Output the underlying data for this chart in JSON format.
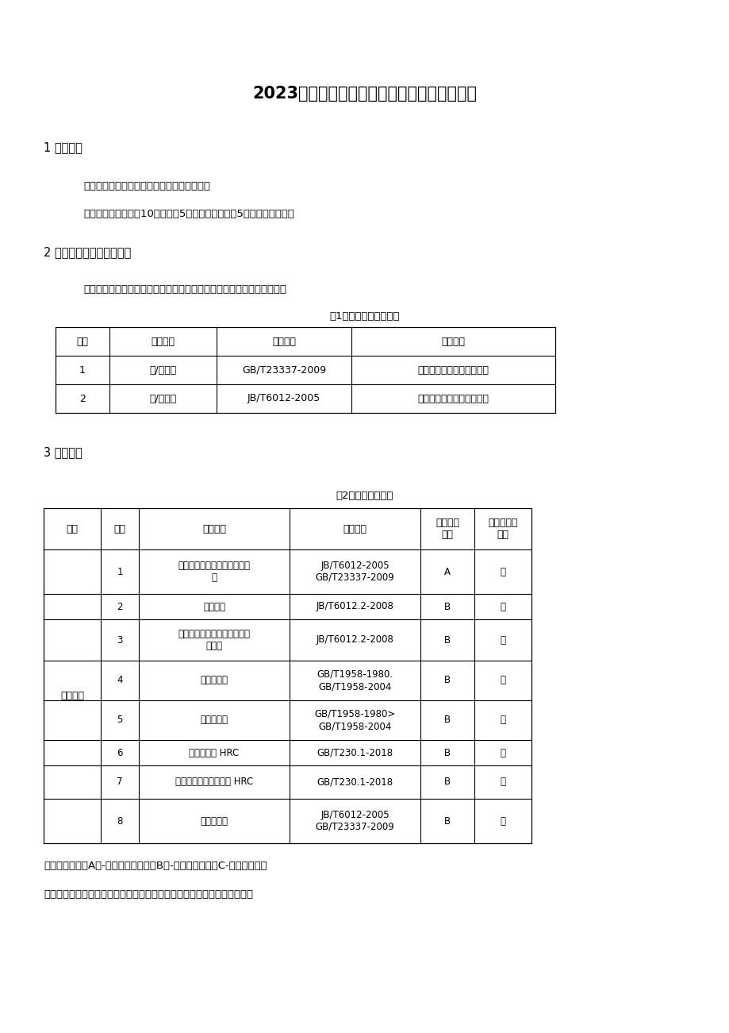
{
  "title": "2023年河北省气门产品质量监督抽查实施细则",
  "section1_title": "1 抽样方法",
  "section1_para1": "以随机抽样的方式抽取检验样品和备用样品。",
  "section1_para2": "每批次产品抽取样品10个，其中5个作为检验样品，5个作为备用样品。",
  "section2_title": "2 抽查产品名称及执行标准",
  "section2_para1": "本次抽查的产品名称主要为：进气门、排气门，各产品执行标准见下表。",
  "table1_title": "表1产品名称及执行标准",
  "table1_headers": [
    "序号",
    "产品名称",
    "标准编号",
    "标准名称"
  ],
  "table1_rows": [
    [
      "1",
      "进/排气门",
      "GB/T23337-2009",
      "内燃机进、排气门技术条件"
    ],
    [
      "2",
      "进/排气门",
      "JB/T6012-2005",
      "内燃机进、排气门技术条件"
    ]
  ],
  "section3_title": "3 检验依据",
  "table2_title": "表2检验项目及依据",
  "table2_headers": [
    "分类",
    "序号",
    "检验项目",
    "检验方法",
    "重要程度\n分级",
    "是否为环保\n指标"
  ],
  "table2_rows": [
    [
      "",
      "1",
      "盘锥面对杆部轴线的斜向圆跳\n动",
      "JB/T6012-2005\nGB/T23337-2009",
      "A",
      "否"
    ],
    [
      "",
      "2",
      "金相组织",
      "JB/T6012.2-2008",
      "B",
      "否"
    ],
    [
      "",
      "3",
      "杆端部淬硬层或硬化层或堆焊\n层深度",
      "JB/T6012.2-2008",
      "B",
      "否"
    ],
    [
      "主要性能",
      "4",
      "杆部圆柱度",
      "GB/T1958-1980.\nGB/T1958-2004",
      "B",
      "否"
    ],
    [
      "",
      "5",
      "盘锥面圆度",
      "GB/T1958-1980>\nGB/T1958-2004",
      "B",
      "否"
    ],
    [
      "",
      "6",
      "杆端面硬度 HRC",
      "GB/T230.1-2018",
      "B",
      "否"
    ],
    [
      "",
      "7",
      "杆部基体硬度及硬度差 HRC",
      "GB/T230.1-2018",
      "B",
      "否"
    ],
    [
      "",
      "8",
      "表面粗糙度",
      "JB/T6012-2005\nGB/T23337-2009",
      "B",
      "否"
    ]
  ],
  "footnote1": "重要程度分级：A类-极重要质量项目，B类-重要质量项目，C-一般质量项目",
  "footnote2": "执行企业标准、团体标准、地方标准的产品，检验项目参照上述内容执行。",
  "bg_color": "#ffffff",
  "text_color": "#000000",
  "border_color": "#000000",
  "font_size_title": 15,
  "font_size_section": 10.5,
  "font_size_body": 9.5,
  "font_size_table": 9
}
